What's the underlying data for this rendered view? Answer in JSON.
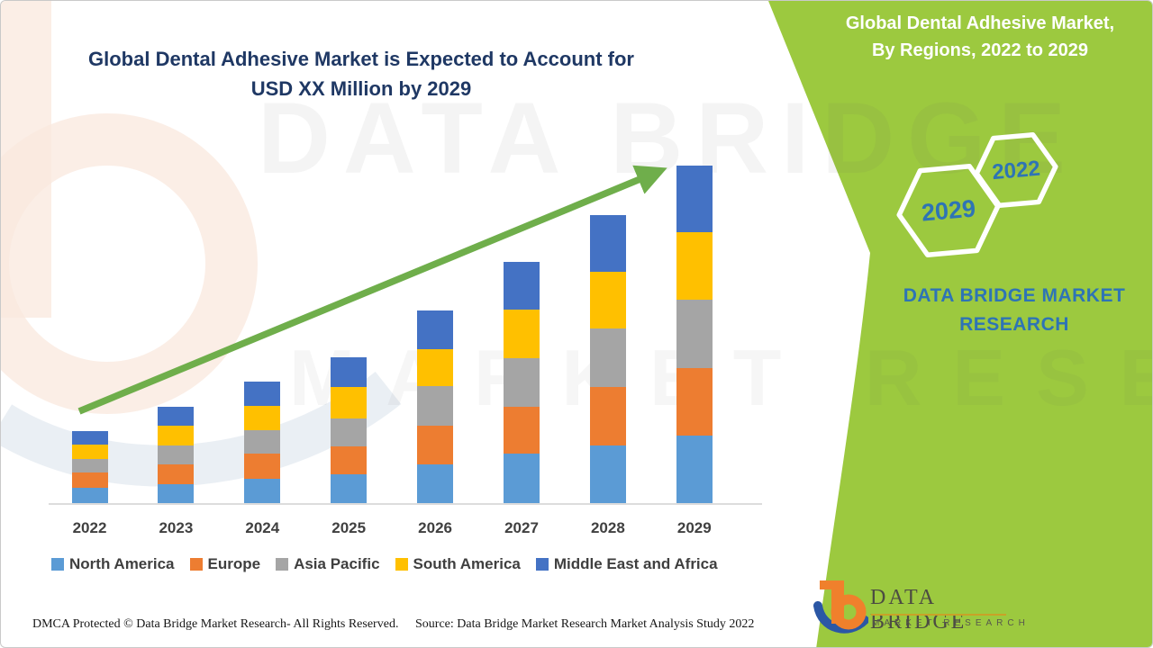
{
  "page": {
    "title_line1": "Global Dental Adhesive Market is Expected to Account for",
    "title_line2": "USD XX Million by 2029"
  },
  "right_panel": {
    "heading_line1": "Global Dental Adhesive Market,",
    "heading_line2": "By Regions, 2022 to 2029",
    "hexagons": [
      {
        "label": "2029"
      },
      {
        "label": "2022"
      }
    ],
    "brand_line1": "DATA BRIDGE MARKET",
    "brand_line2": "RESEARCH",
    "panel_color": "#9CC93F",
    "hexagon_text_color": "#2E74B5"
  },
  "watermark": {
    "line1": "DATA BRIDGE",
    "line2": "MARKET RESEARCH"
  },
  "logo": {
    "name": "DATA BRIDGE",
    "sub": "MARKET RESEARCH"
  },
  "footer": {
    "dmca": "DMCA Protected © Data Bridge Market Research- All Rights Reserved.",
    "source": "Source: Data Bridge Market Research Market Analysis Study 2022"
  },
  "colors": {
    "title_navy": "#1F3864",
    "trend_arrow_green": "#6FAE4B",
    "axis_gray": "#DCDCDC",
    "label_gray": "#404040"
  },
  "chart_data": {
    "type": "bar",
    "stacked": true,
    "title": "Global Dental Adhesive Market is Expected to Account for USD XX Million by 2029",
    "xlabel": "",
    "ylabel": "",
    "grid": false,
    "legend_position": "bottom",
    "value_axis_hidden": true,
    "units_note": "relative units estimated from bar pixel heights; actual values masked as 'USD XX Million'",
    "categories": [
      "2022",
      "2023",
      "2024",
      "2025",
      "2026",
      "2027",
      "2028",
      "2029"
    ],
    "series": [
      {
        "name": "North America",
        "color": "#5B9BD5",
        "values": [
          17,
          21,
          27,
          32,
          43,
          55,
          64,
          75
        ]
      },
      {
        "name": "Europe",
        "color": "#ED7D31",
        "values": [
          17,
          22,
          28,
          31,
          43,
          52,
          65,
          75
        ]
      },
      {
        "name": "Asia Pacific",
        "color": "#A5A5A5",
        "values": [
          15,
          21,
          26,
          31,
          44,
          54,
          65,
          76
        ]
      },
      {
        "name": "South America",
        "color": "#FFC000",
        "values": [
          16,
          22,
          27,
          35,
          41,
          54,
          63,
          75
        ]
      },
      {
        "name": "Middle East and Africa",
        "color": "#4472C4",
        "values": [
          15,
          21,
          27,
          33,
          43,
          53,
          63,
          74
        ]
      }
    ],
    "totals": [
      80,
      107,
      135,
      162,
      214,
      268,
      320,
      375
    ],
    "trend_arrow": true
  }
}
